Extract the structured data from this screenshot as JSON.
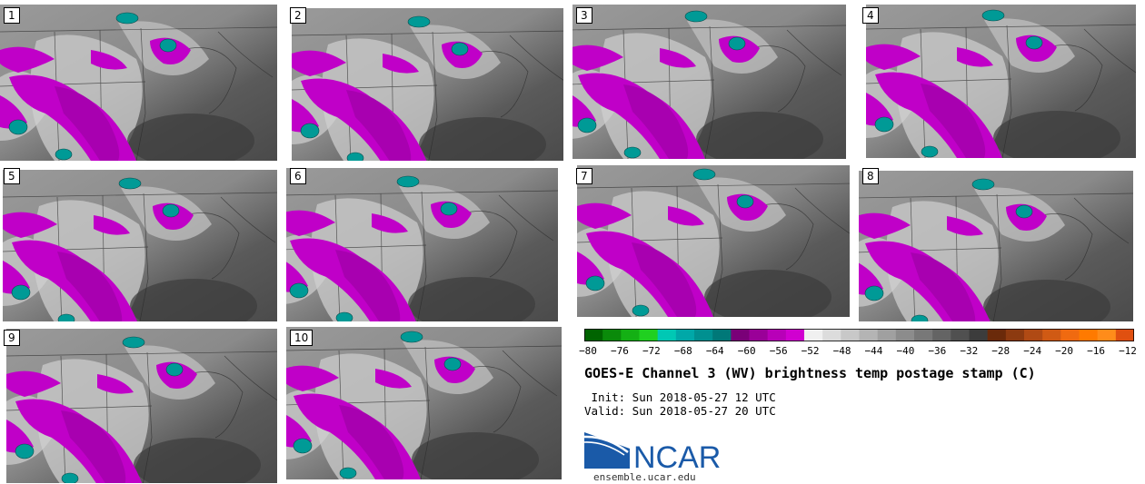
{
  "panels": [
    {
      "label": "1"
    },
    {
      "label": "2"
    },
    {
      "label": "3"
    },
    {
      "label": "4"
    },
    {
      "label": "5"
    },
    {
      "label": "6"
    },
    {
      "label": "7"
    },
    {
      "label": "8"
    },
    {
      "label": "9"
    },
    {
      "label": "10"
    }
  ],
  "colorbar": {
    "ticks": [
      "−80",
      "−76",
      "−72",
      "−68",
      "−64",
      "−60",
      "−56",
      "−52",
      "−48",
      "−44",
      "−40",
      "−36",
      "−32",
      "−28",
      "−24",
      "−20",
      "−16",
      "−12"
    ],
    "colors": [
      "#006400",
      "#0a8a0a",
      "#14b014",
      "#20d020",
      "#00c8b4",
      "#00a8a8",
      "#009090",
      "#007878",
      "#7a0078",
      "#9a0098",
      "#b800b8",
      "#d000d0",
      "#f0f0f0",
      "#dcdcdc",
      "#c8c8c8",
      "#b4b4b4",
      "#a0a0a0",
      "#8c8c8c",
      "#787878",
      "#646464",
      "#505050",
      "#3c3c3c",
      "#6a2a0a",
      "#8c3a10",
      "#b04a14",
      "#d05a14",
      "#f06a10",
      "#ff7a00",
      "#ff8c1a",
      "#e05010"
    ]
  },
  "title": "GOES-E Channel 3 (WV) brightness temp postage stamp (C)",
  "init": " Init: Sun 2018-05-27 12 UTC",
  "valid": "Valid: Sun 2018-05-27 20 UTC",
  "logo": {
    "text": "NCAR",
    "url": "ensemble.ucar.edu"
  }
}
